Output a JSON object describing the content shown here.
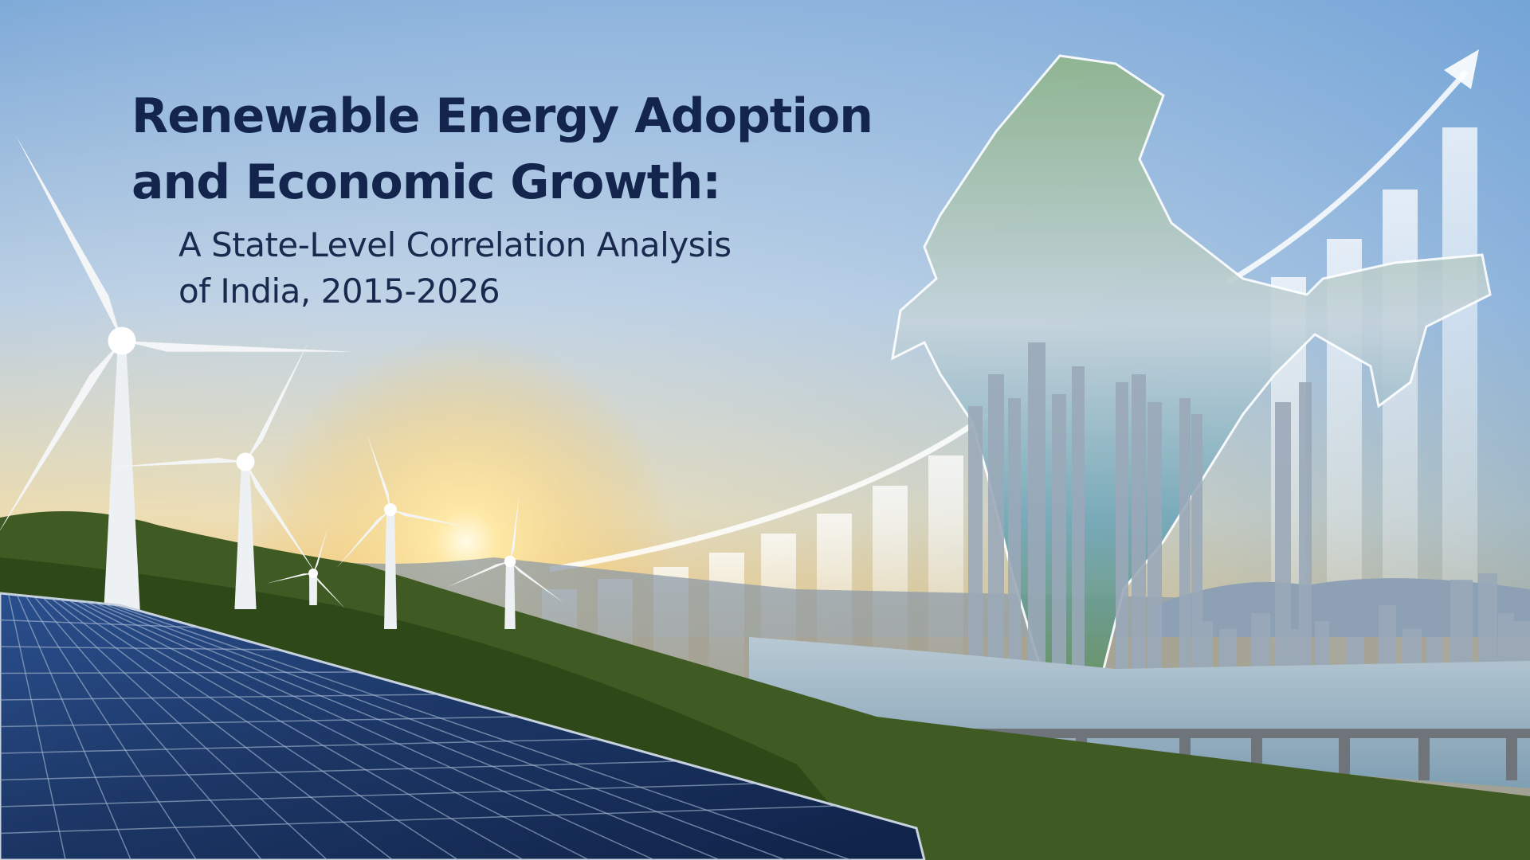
{
  "header": {
    "title": [
      "Renewable Energy Adoption",
      "and Economic Growth:"
    ],
    "subtitle": [
      "A State-Level Correlation Analysis",
      "of India, 2015-2026"
    ]
  }
}
